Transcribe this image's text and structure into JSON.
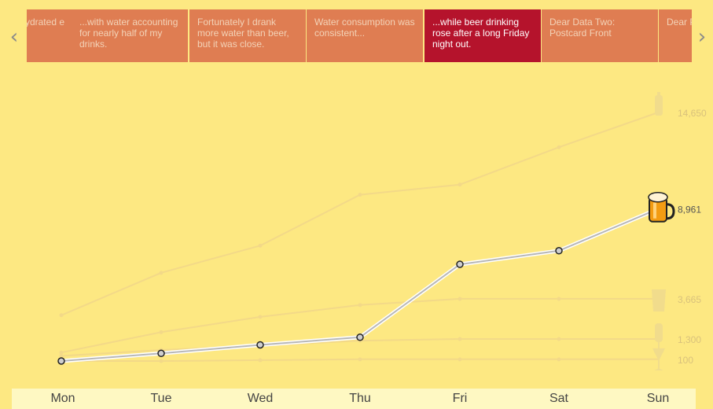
{
  "nav": {
    "prev_icon": "‹",
    "next_icon": "›"
  },
  "cards": [
    {
      "label": "...dehydrated\ne",
      "active": false
    },
    {
      "label": "...with water accounting for nearly half of my drinks.",
      "active": false
    },
    {
      "label": "Fortunately I drank more water than beer, but it was close.",
      "active": false
    },
    {
      "label": "Water consumption was consistent...",
      "active": false
    },
    {
      "label": "...while beer drinking rose after a long Friday night out.",
      "active": true
    },
    {
      "label": "Dear Data Two: Postcard Front",
      "active": false
    },
    {
      "label": "Dear Postcard",
      "active": false
    }
  ],
  "chart_data": {
    "type": "line",
    "categories": [
      "Mon",
      "Tue",
      "Wed",
      "Thu",
      "Fri",
      "Sat",
      "Sun"
    ],
    "ylim": [
      0,
      16000
    ],
    "highlight": "beer",
    "series": [
      {
        "key": "water",
        "icon": "water-bottle-icon",
        "end_label": "14,650",
        "values": [
          2700,
          5200,
          6800,
          9800,
          10400,
          12600,
          14650
        ]
      },
      {
        "key": "beer",
        "icon": "beer-mug-icon",
        "end_label": "8,961",
        "values": [
          0,
          450,
          950,
          1400,
          5700,
          6500,
          8961
        ]
      },
      {
        "key": "coffee",
        "icon": "glass-icon",
        "end_label": "3,665",
        "values": [
          500,
          1700,
          2600,
          3300,
          3665,
          3665,
          3665
        ]
      },
      {
        "key": "wine",
        "icon": "wine-glass-icon",
        "end_label": "1,300",
        "values": [
          300,
          650,
          900,
          1200,
          1300,
          1300,
          1300
        ]
      },
      {
        "key": "liquor",
        "icon": "shot-glass-icon",
        "end_label": "100",
        "values": [
          0,
          0,
          50,
          100,
          100,
          100,
          100
        ]
      }
    ],
    "colors": {
      "faded": "#f3d988",
      "faded_text": "#d9c27c",
      "highlight_line": "#b8b8b8",
      "highlight_text": "#555555"
    }
  }
}
